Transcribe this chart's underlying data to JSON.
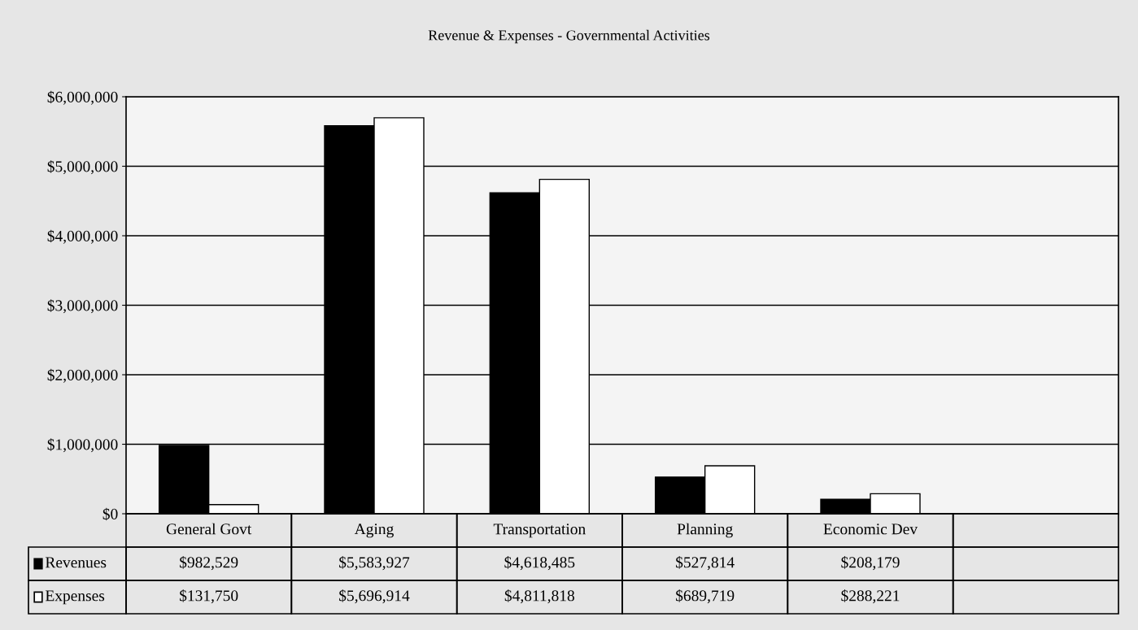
{
  "chart_data": {
    "type": "bar",
    "title": "Revenue & Expenses - Governmental Activities",
    "categories": [
      "General Govt",
      "Aging",
      "Transportation",
      "Planning",
      "Economic Dev",
      null
    ],
    "series": [
      {
        "name": "Revenues",
        "color": "#000000",
        "values": [
          982529,
          5583927,
          4618485,
          527814,
          208179,
          null
        ],
        "value_labels": [
          "$982,529",
          "$5,583,927",
          "$4,618,485",
          "$527,814",
          "$208,179",
          null
        ]
      },
      {
        "name": "Expenses",
        "color": "#ffffff",
        "values": [
          131750,
          5696914,
          4811818,
          689719,
          288221,
          null
        ],
        "value_labels": [
          "$131,750",
          "$5,696,914",
          "$4,811,818",
          "$689,719",
          "$288,221",
          null
        ]
      }
    ],
    "ylim": [
      0,
      6000000
    ],
    "yticks": [
      {
        "value": 0,
        "label": "$0"
      },
      {
        "value": 1000000,
        "label": "$1,000,000"
      },
      {
        "value": 2000000,
        "label": "$2,000,000"
      },
      {
        "value": 3000000,
        "label": "$3,000,000"
      },
      {
        "value": 4000000,
        "label": "$4,000,000"
      },
      {
        "value": 5000000,
        "label": "$5,000,000"
      },
      {
        "value": 6000000,
        "label": "$6,000,000"
      }
    ],
    "grid": "y",
    "legend": "bottom left"
  }
}
